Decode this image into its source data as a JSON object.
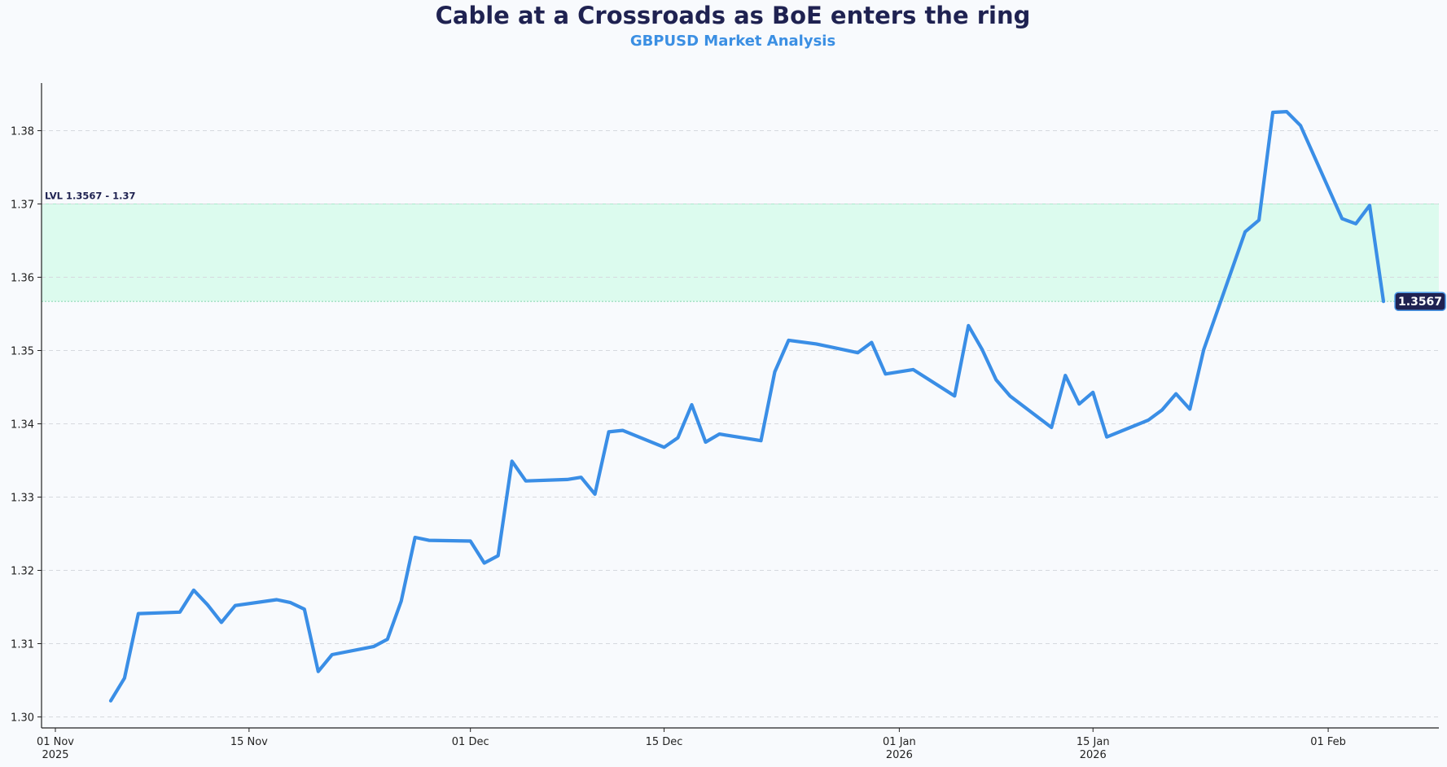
{
  "chart_data": {
    "type": "line",
    "title": "Cable at a Crossroads as BoE enters the ring",
    "subtitle": "GBPUSD Market Analysis",
    "xlabel": "",
    "ylabel": "",
    "ylim": [
      1.2985,
      1.3865
    ],
    "xlim": [
      "2025-10-31",
      "2026-02-09"
    ],
    "grid": "y-dashed",
    "y_ticks": [
      "1.30",
      "1.31",
      "1.32",
      "1.33",
      "1.34",
      "1.35",
      "1.36",
      "1.37",
      "1.38"
    ],
    "x_ticks": [
      {
        "date": "2025-11-01",
        "label": "01 Nov",
        "sublabel": "2025"
      },
      {
        "date": "2025-11-15",
        "label": "15 Nov",
        "sublabel": ""
      },
      {
        "date": "2025-12-01",
        "label": "01 Dec",
        "sublabel": ""
      },
      {
        "date": "2025-12-15",
        "label": "15 Dec",
        "sublabel": ""
      },
      {
        "date": "2026-01-01",
        "label": "01 Jan",
        "sublabel": "2026"
      },
      {
        "date": "2026-01-15",
        "label": "15 Jan",
        "sublabel": "2026"
      },
      {
        "date": "2026-02-01",
        "label": "01 Feb",
        "sublabel": ""
      }
    ],
    "band": {
      "low": 1.3567,
      "high": 1.37,
      "label": "LVL 1.3567 - 1.37",
      "color": "#dcfbee"
    },
    "last_value_label": "1.3567",
    "line_color": "#3a8ee6",
    "series": [
      {
        "name": "",
        "points": [
          [
            "2025-11-05",
            1.3022
          ],
          [
            "2025-11-06",
            1.3053
          ],
          [
            "2025-11-07",
            1.3141
          ],
          [
            "2025-11-10",
            1.3143
          ],
          [
            "2025-11-11",
            1.3173
          ],
          [
            "2025-11-12",
            1.3153
          ],
          [
            "2025-11-13",
            1.3129
          ],
          [
            "2025-11-14",
            1.3152
          ],
          [
            "2025-11-17",
            1.316
          ],
          [
            "2025-11-18",
            1.3156
          ],
          [
            "2025-11-19",
            1.3147
          ],
          [
            "2025-11-20",
            1.3062
          ],
          [
            "2025-11-21",
            1.3085
          ],
          [
            "2025-11-24",
            1.3096
          ],
          [
            "2025-11-25",
            1.3106
          ],
          [
            "2025-11-26",
            1.3158
          ],
          [
            "2025-11-27",
            1.3245
          ],
          [
            "2025-11-28",
            1.3241
          ],
          [
            "2025-12-01",
            1.324
          ],
          [
            "2025-12-02",
            1.321
          ],
          [
            "2025-12-03",
            1.322
          ],
          [
            "2025-12-04",
            1.3349
          ],
          [
            "2025-12-05",
            1.3322
          ],
          [
            "2025-12-08",
            1.3324
          ],
          [
            "2025-12-09",
            1.3327
          ],
          [
            "2025-12-10",
            1.3304
          ],
          [
            "2025-12-11",
            1.3389
          ],
          [
            "2025-12-12",
            1.3391
          ],
          [
            "2025-12-15",
            1.3368
          ],
          [
            "2025-12-16",
            1.3381
          ],
          [
            "2025-12-17",
            1.3426
          ],
          [
            "2025-12-18",
            1.3375
          ],
          [
            "2025-12-19",
            1.3386
          ],
          [
            "2025-12-22",
            1.3377
          ],
          [
            "2025-12-23",
            1.3471
          ],
          [
            "2025-12-24",
            1.3514
          ],
          [
            "2025-12-26",
            1.3509
          ],
          [
            "2025-12-29",
            1.3497
          ],
          [
            "2025-12-30",
            1.3511
          ],
          [
            "2025-12-31",
            1.3468
          ],
          [
            "2026-01-02",
            1.3474
          ],
          [
            "2026-01-05",
            1.3438
          ],
          [
            "2026-01-06",
            1.3534
          ],
          [
            "2026-01-07",
            1.3501
          ],
          [
            "2026-01-08",
            1.346
          ],
          [
            "2026-01-09",
            1.3438
          ],
          [
            "2026-01-12",
            1.3395
          ],
          [
            "2026-01-13",
            1.3466
          ],
          [
            "2026-01-14",
            1.3427
          ],
          [
            "2026-01-15",
            1.3443
          ],
          [
            "2026-01-16",
            1.3382
          ],
          [
            "2026-01-19",
            1.3405
          ],
          [
            "2026-01-20",
            1.3419
          ],
          [
            "2026-01-21",
            1.3441
          ],
          [
            "2026-01-22",
            1.342
          ],
          [
            "2026-01-23",
            1.3501
          ],
          [
            "2026-01-26",
            1.3662
          ],
          [
            "2026-01-27",
            1.3678
          ],
          [
            "2026-01-28",
            1.3825
          ],
          [
            "2026-01-29",
            1.3826
          ],
          [
            "2026-01-30",
            1.3807
          ],
          [
            "2026-02-02",
            1.368
          ],
          [
            "2026-02-03",
            1.3673
          ],
          [
            "2026-02-04",
            1.3698
          ],
          [
            "2026-02-05",
            1.3567
          ]
        ]
      }
    ]
  }
}
